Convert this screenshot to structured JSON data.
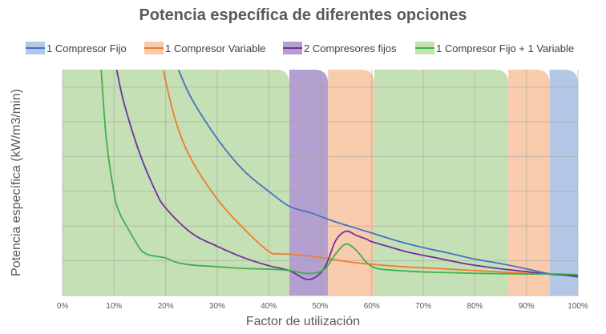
{
  "chart_data": {
    "type": "line",
    "title": "Potencia específica de diferentes opciones",
    "xlabel": "Factor de utilización",
    "ylabel": "Potencia específica (kW/m3/min)",
    "xlim": [
      0,
      100
    ],
    "ylim": [
      0,
      6.5
    ],
    "x_tick_labels": [
      "0%",
      "10%",
      "20%",
      "30%",
      "40%",
      "50%",
      "60%",
      "70%",
      "80%",
      "90%",
      "100%"
    ],
    "y_tick_labels_shown": false,
    "grid": "both",
    "legend_position": "top",
    "series": [
      {
        "name": "1 Compresor Fijo",
        "color": "#4472C4",
        "x": [
          22.5,
          25,
          30,
          35,
          40,
          44,
          48,
          52,
          56,
          60,
          65,
          70,
          75,
          80,
          85,
          90,
          94,
          97,
          100
        ],
        "y": [
          6.5,
          5.68,
          4.52,
          3.62,
          3.0,
          2.57,
          2.39,
          2.17,
          1.98,
          1.8,
          1.57,
          1.38,
          1.22,
          1.05,
          0.92,
          0.77,
          0.64,
          0.6,
          0.53
        ]
      },
      {
        "name": "1 Compresor Variable",
        "color": "#ED7D31",
        "x": [
          19.5,
          22,
          25,
          30,
          35,
          40,
          42,
          44,
          48,
          52,
          56,
          60,
          65,
          70,
          75,
          80,
          85,
          90,
          94,
          97,
          100
        ],
        "y": [
          6.5,
          5.0,
          3.92,
          2.78,
          1.95,
          1.27,
          1.2,
          1.19,
          1.14,
          1.05,
          0.96,
          0.9,
          0.84,
          0.8,
          0.76,
          0.72,
          0.68,
          0.64,
          0.62,
          0.61,
          0.6
        ]
      },
      {
        "name": "2 Compresores fijos",
        "color": "#7030A0",
        "x": [
          10.5,
          12,
          15,
          18,
          20,
          25,
          30,
          35,
          40,
          44,
          47,
          49,
          51,
          53,
          55,
          57,
          59,
          60,
          63,
          67,
          72,
          78,
          85,
          90,
          94,
          97,
          100
        ],
        "y": [
          6.5,
          5.5,
          4.08,
          3.02,
          2.52,
          1.8,
          1.42,
          1.1,
          0.86,
          0.72,
          0.48,
          0.52,
          0.84,
          1.58,
          1.85,
          1.73,
          1.62,
          1.55,
          1.42,
          1.25,
          1.1,
          0.92,
          0.77,
          0.69,
          0.62,
          0.59,
          0.56
        ]
      },
      {
        "name": "1 Compresor Fijo + 1 Variable",
        "color": "#3DB14A",
        "x": [
          7.5,
          8.5,
          10,
          11,
          13,
          15,
          16,
          17,
          20,
          22,
          25,
          30,
          35,
          40,
          44,
          47,
          49,
          51,
          53,
          55,
          57,
          59,
          61,
          65,
          70,
          75,
          80,
          85,
          90,
          94,
          97,
          100
        ],
        "y": [
          6.5,
          4.5,
          2.95,
          2.4,
          1.85,
          1.35,
          1.22,
          1.16,
          1.08,
          0.96,
          0.88,
          0.83,
          0.78,
          0.76,
          0.72,
          0.64,
          0.65,
          0.78,
          1.2,
          1.48,
          1.3,
          0.95,
          0.78,
          0.72,
          0.68,
          0.66,
          0.64,
          0.63,
          0.62,
          0.62,
          0.62,
          0.6
        ]
      }
    ],
    "regions": [
      {
        "series": "1 Compresor Fijo + 1 Variable",
        "from": 0,
        "to": 44,
        "color": "#C5E0B4"
      },
      {
        "series": "2 Compresores fijos",
        "from": 44,
        "to": 51.5,
        "color": "#B4A0D0"
      },
      {
        "series": "1 Compresor Variable",
        "from": 51.5,
        "to": 60.5,
        "color": "#F8CBAD"
      },
      {
        "series": "1 Compresor Fijo + 1 Variable",
        "from": 60.5,
        "to": 86.5,
        "color": "#C5E0B4"
      },
      {
        "series": "1 Compresor Variable",
        "from": 86.5,
        "to": 94.5,
        "color": "#F8CBAD"
      },
      {
        "series": "1 Compresor Fijo",
        "from": 94.5,
        "to": 100,
        "color": "#B4C7E7"
      }
    ],
    "legend": [
      {
        "label": "1 Compresor Fijo",
        "line_color": "#4472C4",
        "fill_color": "#B4C7E7"
      },
      {
        "label": "1 Compresor Variable",
        "line_color": "#ED7D31",
        "fill_color": "#F8CBAD"
      },
      {
        "label": "2 Compresores fijos",
        "line_color": "#7030A0",
        "fill_color": "#B4A0D0"
      },
      {
        "label": "1 Compresor Fijo + 1 Variable",
        "line_color": "#3DB14A",
        "fill_color": "#C5E0B4"
      }
    ]
  }
}
